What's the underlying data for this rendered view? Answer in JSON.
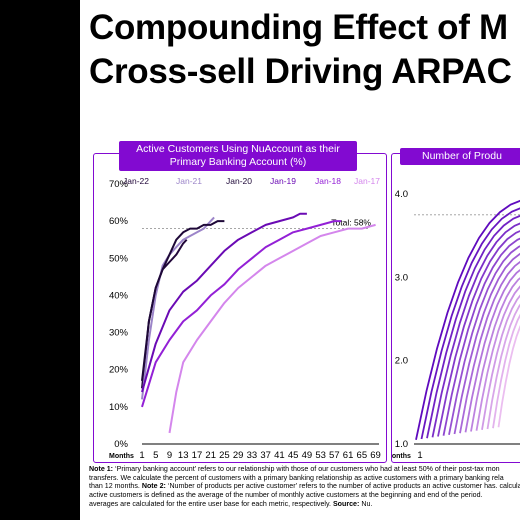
{
  "title": "Compounding Effect of M\nCross-sell Driving ARPAC",
  "chart_data": [
    {
      "type": "line",
      "title": "Active Customers Using NuAccount as their Primary Banking Account (%)",
      "xlabel": "Months",
      "x_ticks": [
        1,
        5,
        9,
        13,
        17,
        21,
        25,
        29,
        33,
        37,
        41,
        45,
        49,
        53,
        57,
        61,
        65,
        69
      ],
      "ylim": [
        0,
        70
      ],
      "y_ticks": [
        "0%",
        "10%",
        "20%",
        "30%",
        "40%",
        "50%",
        "60%",
        "70%"
      ],
      "reference_line": 58,
      "annotation": "Total: 58%",
      "series": [
        {
          "name": "Jan-22",
          "color": "#22073a",
          "x": [
            1,
            3,
            5,
            7,
            9,
            11,
            13,
            14
          ],
          "y": [
            15,
            33,
            42,
            47,
            49,
            51,
            54,
            55
          ]
        },
        {
          "name": "Jan-21",
          "color": "#9c85c9",
          "x": [
            1,
            3,
            5,
            7,
            9,
            11,
            13,
            15,
            17,
            19,
            21,
            22
          ],
          "y": [
            12,
            28,
            40,
            48,
            51,
            53,
            55,
            56,
            57,
            58,
            60,
            61
          ]
        },
        {
          "name": "Jan-20",
          "color": "#1e0838",
          "x": [
            1,
            3,
            5,
            7,
            9,
            11,
            13,
            15,
            17,
            19,
            21,
            23,
            25
          ],
          "y": [
            17,
            33,
            42,
            47,
            51,
            55,
            57,
            58,
            58,
            59,
            59,
            60,
            60
          ]
        },
        {
          "name": "Jan-19",
          "color": "#6a0ab4",
          "x": [
            1,
            5,
            9,
            13,
            17,
            21,
            25,
            29,
            33,
            37,
            41,
            45,
            47,
            49
          ],
          "y": [
            14,
            27,
            36,
            41,
            44,
            48,
            52,
            55,
            57,
            59,
            60,
            61,
            62,
            62
          ]
        },
        {
          "name": "Jan-18",
          "color": "#9320d6",
          "x": [
            1,
            5,
            9,
            13,
            17,
            21,
            25,
            29,
            33,
            37,
            41,
            45,
            49,
            53,
            57,
            59
          ],
          "y": [
            10,
            22,
            28,
            33,
            36,
            40,
            43,
            47,
            50,
            53,
            55,
            57,
            58,
            59,
            60,
            60
          ]
        },
        {
          "name": "Jan-17",
          "color": "#d486ec",
          "x": [
            9,
            11,
            13,
            17,
            21,
            25,
            29,
            33,
            37,
            41,
            45,
            49,
            53,
            57,
            61,
            65,
            69
          ],
          "y": [
            3,
            14,
            22,
            28,
            33,
            38,
            42,
            45,
            48,
            50,
            52,
            54,
            56,
            57,
            58,
            58,
            59
          ]
        }
      ]
    },
    {
      "type": "line",
      "title": "Number of Produ",
      "xlabel": "Months",
      "x_ticks": [
        1
      ],
      "ylim": [
        1.0,
        4.0
      ],
      "y_ticks": [
        "1.0",
        "2.0",
        "3.0",
        "4.0"
      ]
    }
  ],
  "notes": [
    {
      "label": "Note 1:",
      "text": " ‘Primary banking account’ refers to our relationship with those of our customers who had at least 50% of their post-tax mon"
    },
    {
      "label": "",
      "text": "transfers. We calculate the percent of customers with a primary banking relationship as active customers with a primary banking rela"
    },
    {
      "label": "",
      "text": "than 12 months. "
    },
    {
      "label": "Note 2:",
      "text": " ‘Number of products per active customer’ refers to the number of active products an active customer has. "
    },
    {
      "label": "",
      "text": "calculated as the average monthly revenue (total revenue divided by the number of months in the period) divided by the average numb"
    },
    {
      "label": "",
      "text": "active customers is defined as the average of the number of monthly active customers at the beginning and end of the period."
    },
    {
      "label": "",
      "text": "averages are calculated for the entire user base for each metric, respectively. "
    },
    {
      "label": "Source:",
      "text": " Nu."
    }
  ],
  "colors": {
    "accent": "#820ad1"
  }
}
